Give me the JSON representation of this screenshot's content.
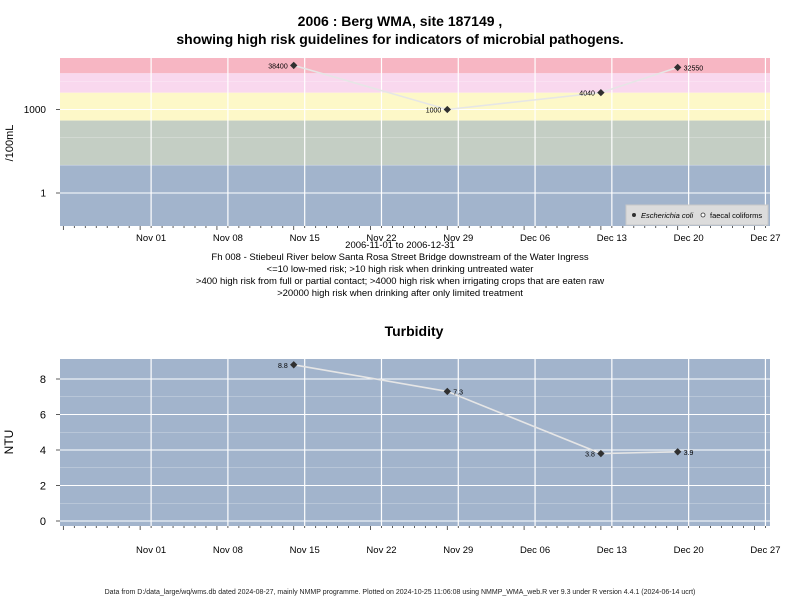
{
  "top": {
    "title_line1": "2006 : Berg WMA, site 187149 ,",
    "title_line2": "showing high risk guidelines for indicators of microbial pathogens.",
    "ylabel": "/100mL",
    "legend": [
      "Escherichia coli",
      "faecal coliforms"
    ],
    "date_range": "2006-11-01 to 2006-12-31",
    "site_desc": "Fh 008 - Stiebeul River below Santa Rosa Street Bridge downstream of the Water Ingress",
    "guideline_1": "<=10 low-med risk; >10 high risk when drinking untreated water",
    "guideline_2": ">400 high risk from full or partial contact; >4000 high risk when irrigating crops that are eaten raw",
    "guideline_3": ">20000 high risk when drinking after only limited treatment"
  },
  "bottom": {
    "title": "Turbidity",
    "ylabel": "NTU"
  },
  "footer": "Data from D:/data_large/wq/wms.db dated 2024-08-27, mainly NMMP programme. Plotted on 2024-10-25 11:06:08 using NMMP_WMA_web.R ver 9.3 under R version 4.4.1 (2024-06-14 ucrt)",
  "colors": {
    "band_red": "#f7b6c3",
    "band_pink": "#f9d8ee",
    "band_yellow": "#fdf8c8",
    "band_grey": "#c4cec4",
    "band_blue": "#a2b4cc",
    "line": "#e6e6e6",
    "point": "#303030"
  },
  "chart_data": [
    {
      "type": "line",
      "ylabel": "/100mL",
      "y_scale": "log",
      "x_tick_labels": [
        "Nov 01",
        "Nov 08",
        "Nov 15",
        "Nov 22",
        "Nov 29",
        "Dec 06",
        "Dec 13",
        "Dec 20",
        "Dec 27"
      ],
      "x_ticks": [
        "2006-11-01",
        "2006-11-08",
        "2006-11-15",
        "2006-11-22",
        "2006-11-29",
        "2006-12-06",
        "2006-12-13",
        "2006-12-20",
        "2006-12-27"
      ],
      "y_tick_labels": [
        "1",
        "1000"
      ],
      "y_ticks": [
        1,
        1000
      ],
      "guideline_bands": [
        10,
        400,
        4000,
        20000
      ],
      "series": [
        {
          "name": "Escherichia coli",
          "x": [
            "2006-11-14",
            "2006-11-28",
            "2006-12-12",
            "2006-12-19"
          ],
          "y": [
            38400,
            1000,
            4040,
            32550
          ],
          "labels": [
            "38400",
            "1000",
            "4040",
            "32550"
          ]
        }
      ],
      "legend_position": "bottom-right"
    },
    {
      "type": "line",
      "title": "Turbidity",
      "ylabel": "NTU",
      "x_tick_labels": [
        "Nov 01",
        "Nov 08",
        "Nov 15",
        "Nov 22",
        "Nov 29",
        "Dec 06",
        "Dec 13",
        "Dec 20",
        "Dec 27"
      ],
      "x_ticks": [
        "2006-11-01",
        "2006-11-08",
        "2006-11-15",
        "2006-11-22",
        "2006-11-29",
        "2006-12-06",
        "2006-12-13",
        "2006-12-20",
        "2006-12-27"
      ],
      "y_tick_labels": [
        "0",
        "2",
        "4",
        "6",
        "8"
      ],
      "y_ticks": [
        0,
        2,
        4,
        6,
        8
      ],
      "series": [
        {
          "x": [
            "2006-11-14",
            "2006-11-28",
            "2006-12-12",
            "2006-12-19"
          ],
          "y": [
            8.8,
            7.3,
            3.8,
            3.9
          ],
          "labels": [
            "8.8",
            "7.3",
            "3.8",
            "3.9"
          ]
        }
      ]
    }
  ]
}
